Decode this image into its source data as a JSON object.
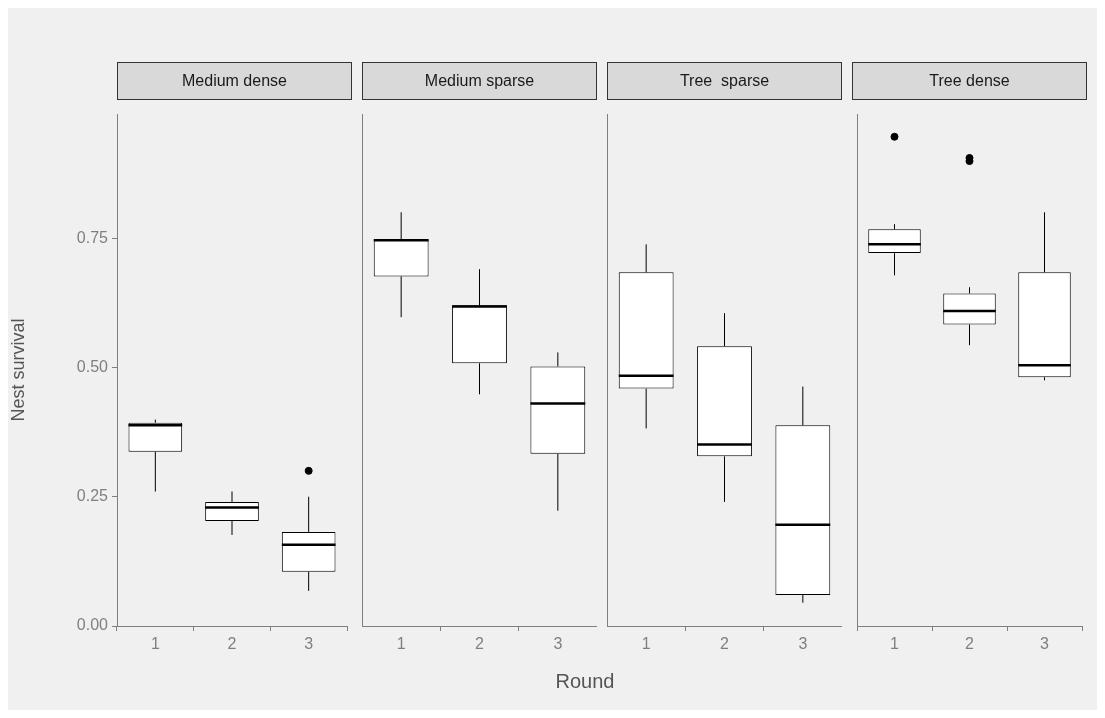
{
  "chart_data": [
    {
      "type": "box",
      "title": "Medium dense",
      "ylabel": "Nest survival",
      "categories": [
        "1",
        "2",
        "3"
      ],
      "ylim": [
        0,
        0.99
      ],
      "yticks": [
        {
          "value": 0,
          "label": "0.00"
        },
        {
          "value": 0.25,
          "label": "0.25"
        },
        {
          "value": 0.5,
          "label": "0.50"
        },
        {
          "value": 0.75,
          "label": "0.75"
        }
      ],
      "grid": false,
      "boxes": [
        {
          "low": 0.26,
          "q1": 0.337,
          "median": 0.388,
          "q3": 0.393,
          "high": 0.399
        },
        {
          "low": 0.176,
          "q1": 0.203,
          "median": 0.229,
          "q3": 0.24,
          "high": 0.26
        },
        {
          "low": 0.068,
          "q1": 0.105,
          "median": 0.157,
          "q3": 0.182,
          "high": 0.25,
          "outliers": [
            0.3
          ]
        }
      ]
    },
    {
      "type": "box",
      "title": "Medium sparse",
      "xlabel": "Round",
      "categories": [
        "1",
        "2",
        "3"
      ],
      "ylim": [
        0,
        0.99
      ],
      "tick_labels": "x",
      "grid": false,
      "boxes": [
        {
          "low": 0.597,
          "q1": 0.676,
          "median": 0.746,
          "q3": 0.748,
          "high": 0.8
        },
        {
          "low": 0.448,
          "q1": 0.508,
          "median": 0.618,
          "q3": 0.62,
          "high": 0.69
        },
        {
          "low": 0.223,
          "q1": 0.333,
          "median": 0.43,
          "q3": 0.502,
          "high": 0.529
        }
      ]
    },
    {
      "type": "box",
      "title": "Tree  sparse",
      "categories": [
        "1",
        "2",
        "3"
      ],
      "ylim": [
        0,
        0.99
      ],
      "tick_labels": "x",
      "grid": false,
      "boxes": [
        {
          "low": 0.382,
          "q1": 0.459,
          "median": 0.484,
          "q3": 0.684,
          "high": 0.738
        },
        {
          "low": 0.24,
          "q1": 0.328,
          "median": 0.351,
          "q3": 0.541,
          "high": 0.605
        },
        {
          "low": 0.045,
          "q1": 0.06,
          "median": 0.196,
          "q3": 0.388,
          "high": 0.463
        }
      ]
    },
    {
      "type": "box",
      "title": "Tree dense",
      "categories": [
        "1",
        "2",
        "3"
      ],
      "ylim": [
        0,
        0.99
      ],
      "tick_labels": "x",
      "grid": false,
      "boxes": [
        {
          "low": 0.678,
          "q1": 0.721,
          "median": 0.738,
          "q3": 0.767,
          "high": 0.777,
          "outliers": [
            0.946
          ]
        },
        {
          "low": 0.543,
          "q1": 0.583,
          "median": 0.609,
          "q3": 0.643,
          "high": 0.655,
          "outliers": [
            0.905,
            0.899
          ]
        },
        {
          "low": 0.475,
          "q1": 0.481,
          "median": 0.504,
          "q3": 0.684,
          "high": 0.8
        }
      ]
    }
  ]
}
